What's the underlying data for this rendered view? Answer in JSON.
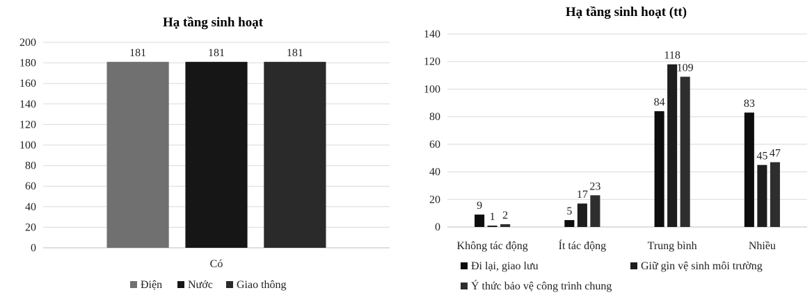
{
  "chart_data": [
    {
      "type": "bar",
      "title": "Hạ tầng sinh hoạt",
      "categories": [
        "Có"
      ],
      "series": [
        {
          "name": "Điện",
          "values": [
            181
          ],
          "color": "#707070"
        },
        {
          "name": "Nước",
          "values": [
            181
          ],
          "color": "#161616"
        },
        {
          "name": "Giao thông",
          "values": [
            181
          ],
          "color": "#2a2a2a"
        }
      ],
      "ylim": [
        0,
        200
      ],
      "yticks": [
        0,
        20,
        40,
        60,
        80,
        100,
        120,
        140,
        160,
        180,
        200
      ],
      "grid": true,
      "legend": "bottom"
    },
    {
      "type": "bar",
      "title": "Hạ tầng sinh hoạt (tt)",
      "categories": [
        "Không tác động",
        "Ít tác động",
        "Trung bình",
        "Nhiều"
      ],
      "series": [
        {
          "name": "Đi lại, giao lưu",
          "values": [
            9,
            5,
            84,
            83
          ],
          "color": "#0d0d0d"
        },
        {
          "name": "Giữ gìn vệ sinh môi trường",
          "values": [
            1,
            17,
            118,
            45
          ],
          "color": "#1e1e1e"
        },
        {
          "name": "Ý thức bảo vệ công trình chung",
          "values": [
            2,
            23,
            109,
            47
          ],
          "color": "#2e2e2e"
        }
      ],
      "ylim": [
        0,
        140
      ],
      "yticks": [
        0,
        20,
        40,
        60,
        80,
        100,
        120,
        140
      ],
      "grid": true,
      "legend": "bottom"
    }
  ]
}
